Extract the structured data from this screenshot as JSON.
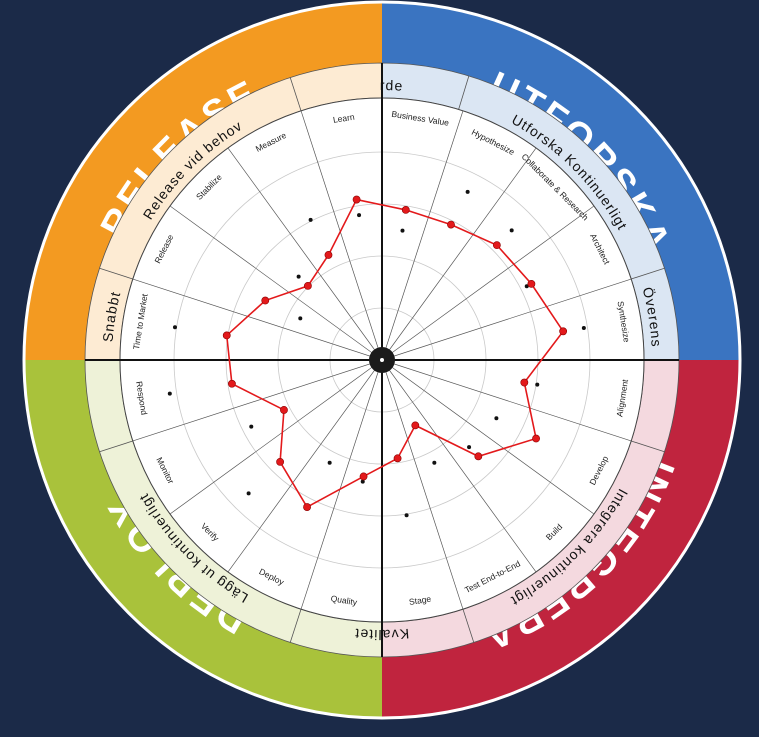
{
  "quadrants": [
    {
      "key": "release",
      "title": "RELEASE",
      "color": "#f39a21",
      "band_color": "#fdebd3"
    },
    {
      "key": "utforska",
      "title": "UTFORSKA",
      "color": "#3a74c1",
      "band_color": "#dbe6f3"
    },
    {
      "key": "integrera",
      "title": "INTEGRERA",
      "color": "#c0243e",
      "band_color": "#f4d9df"
    },
    {
      "key": "deploy",
      "title": "DEPLOY",
      "color": "#a9c23b",
      "band_color": "#eef2d8"
    }
  ],
  "ring_labels": [
    "Värde",
    "Utforska Kontinuerligt",
    "Överens",
    "Integrera kontinuerligt",
    "Kvalitet",
    "Lägg ut kontinuerligt",
    "Snabbt",
    "Release vid behov"
  ],
  "spokes": [
    "Business Value",
    "Hypothesize",
    "Collaborate & Research",
    "Architect",
    "Synthesize",
    "Alignment",
    "Develop",
    "Build",
    "Test End-to-End",
    "Stage",
    "Quality",
    "Deploy",
    "Verify",
    "Monitor",
    "Respond",
    "Time to Market",
    "Release",
    "Stabilize",
    "Measure",
    "Learn"
  ],
  "red_profile": [
    0.58,
    0.58,
    0.62,
    0.64,
    0.7,
    0.55,
    0.66,
    0.52,
    0.28,
    0.38,
    0.45,
    0.63,
    0.55,
    0.42,
    0.58,
    0.6,
    0.5,
    0.4,
    0.45,
    0.62
  ],
  "black_dots": [
    0.5,
    0.72,
    0.7,
    0.62,
    0.78,
    0.6,
    0.49,
    0.47,
    0.44,
    0.6,
    0.47,
    0.44,
    0.72,
    0.56,
    0.82,
    0.8,
    0.35,
    0.45,
    0.6,
    0.56
  ],
  "profile_color": "#e3191b"
}
